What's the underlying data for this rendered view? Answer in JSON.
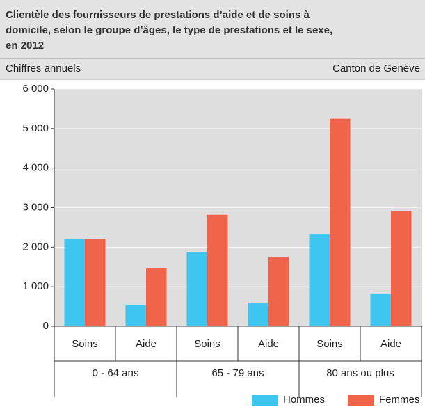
{
  "chart_data": {
    "type": "bar",
    "title": [
      "Clientèle des fournisseurs de prestations d’aide et de soins à",
      "domicile, selon le groupe d’âges, le type de prestations et le sexe,",
      "en 2012"
    ],
    "subtitle": "Chiffres annuels",
    "source": "Canton de Genève",
    "categories": [
      "Soins",
      "Aide",
      "Soins",
      "Aide",
      "Soins",
      "Aide"
    ],
    "groups": [
      "0 - 64 ans",
      "65 - 79 ans",
      "80 ans ou plus"
    ],
    "series": [
      {
        "name": "Hommes",
        "color": "#3ec6f0",
        "values": [
          2200,
          530,
          1880,
          600,
          2320,
          810
        ]
      },
      {
        "name": "Femmes",
        "color": "#f0654a",
        "values": [
          2210,
          1470,
          2820,
          1760,
          5250,
          2920
        ]
      }
    ],
    "ylim": [
      0,
      6000
    ],
    "yticks": [
      0,
      {
        "value": 1000,
        "label": "1 000"
      },
      {
        "value": 2000,
        "label": "2 000"
      },
      {
        "value": 3000,
        "label": "3 000"
      },
      {
        "value": 4000,
        "label": "4 000"
      },
      {
        "value": 5000,
        "label": "5 000"
      },
      {
        "value": 6000,
        "label": "6 000"
      }
    ],
    "grid": true
  }
}
